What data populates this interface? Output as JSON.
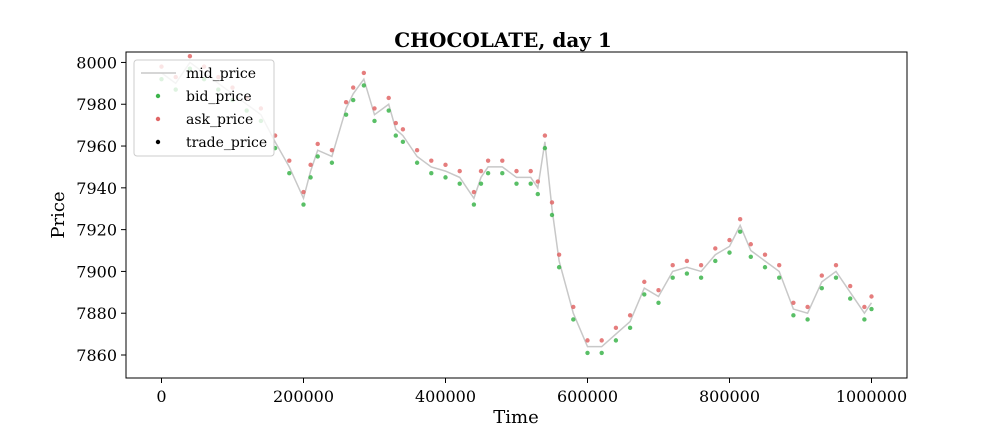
{
  "chart_data": {
    "type": "line",
    "title": "CHOCOLATE, day 1",
    "xlabel": "Time",
    "ylabel": "Price",
    "xlim": [
      -50000,
      1050000
    ],
    "ylim": [
      7849,
      8005
    ],
    "x_ticks": [
      0,
      200000,
      400000,
      600000,
      800000,
      1000000
    ],
    "x_tick_labels": [
      "0",
      "200000",
      "400000",
      "600000",
      "800000",
      "1000000"
    ],
    "y_ticks": [
      7860,
      7880,
      7900,
      7920,
      7940,
      7960,
      7980,
      8000
    ],
    "y_tick_labels": [
      "7860",
      "7880",
      "7900",
      "7920",
      "7940",
      "7960",
      "7980",
      "8000"
    ],
    "grid": false,
    "legend_position": "top-left",
    "legend": [
      {
        "name": "mid_price",
        "marker": "line",
        "color": "#c8c8c8"
      },
      {
        "name": "bid_price",
        "marker": "dot",
        "color": "#3cb44b"
      },
      {
        "name": "ask_price",
        "marker": "dot",
        "color": "#e06666"
      },
      {
        "name": "trade_price",
        "marker": "dot",
        "color": "#000000"
      }
    ],
    "series": [
      {
        "name": "mid_price",
        "color": "#c8c8c8",
        "x": [
          0,
          20000,
          40000,
          60000,
          80000,
          100000,
          120000,
          140000,
          160000,
          180000,
          200000,
          210000,
          220000,
          240000,
          260000,
          270000,
          285000,
          300000,
          320000,
          330000,
          340000,
          360000,
          380000,
          400000,
          420000,
          440000,
          450000,
          460000,
          480000,
          500000,
          520000,
          530000,
          540000,
          550000,
          560000,
          580000,
          600000,
          620000,
          640000,
          660000,
          680000,
          700000,
          720000,
          740000,
          760000,
          780000,
          800000,
          815000,
          830000,
          850000,
          870000,
          890000,
          910000,
          930000,
          950000,
          970000,
          990000,
          1000000
        ],
        "values": [
          7995,
          7990,
          8000,
          7995,
          7990,
          7985,
          7980,
          7975,
          7962,
          7950,
          7935,
          7948,
          7958,
          7955,
          7978,
          7985,
          7992,
          7975,
          7980,
          7968,
          7965,
          7955,
          7950,
          7948,
          7945,
          7935,
          7945,
          7950,
          7950,
          7945,
          7945,
          7940,
          7962,
          7930,
          7905,
          7880,
          7864,
          7864,
          7870,
          7876,
          7892,
          7888,
          7900,
          7902,
          7900,
          7908,
          7912,
          7922,
          7910,
          7905,
          7900,
          7882,
          7880,
          7895,
          7900,
          7890,
          7880,
          7885
        ]
      },
      {
        "name": "bid_price",
        "color": "#3cb44b",
        "x": [
          0,
          20000,
          40000,
          60000,
          80000,
          100000,
          120000,
          140000,
          160000,
          180000,
          200000,
          210000,
          220000,
          240000,
          260000,
          270000,
          285000,
          300000,
          320000,
          330000,
          340000,
          360000,
          380000,
          400000,
          420000,
          440000,
          450000,
          460000,
          480000,
          500000,
          520000,
          530000,
          540000,
          550000,
          560000,
          580000,
          600000,
          620000,
          640000,
          660000,
          680000,
          700000,
          720000,
          740000,
          760000,
          780000,
          800000,
          815000,
          830000,
          850000,
          870000,
          890000,
          910000,
          930000,
          950000,
          970000,
          990000,
          1000000
        ],
        "values": [
          7992,
          7987,
          7997,
          7992,
          7987,
          7982,
          7977,
          7972,
          7959,
          7947,
          7932,
          7945,
          7955,
          7952,
          7975,
          7982,
          7989,
          7972,
          7977,
          7965,
          7962,
          7952,
          7947,
          7945,
          7942,
          7932,
          7942,
          7947,
          7947,
          7942,
          7942,
          7937,
          7959,
          7927,
          7902,
          7877,
          7861,
          7861,
          7867,
          7873,
          7889,
          7885,
          7897,
          7899,
          7897,
          7905,
          7909,
          7919,
          7907,
          7902,
          7897,
          7879,
          7877,
          7892,
          7897,
          7887,
          7877,
          7882
        ]
      },
      {
        "name": "ask_price",
        "color": "#e06666",
        "x": [
          0,
          20000,
          40000,
          60000,
          80000,
          100000,
          120000,
          140000,
          160000,
          180000,
          200000,
          210000,
          220000,
          240000,
          260000,
          270000,
          285000,
          300000,
          320000,
          330000,
          340000,
          360000,
          380000,
          400000,
          420000,
          440000,
          450000,
          460000,
          480000,
          500000,
          520000,
          530000,
          540000,
          550000,
          560000,
          580000,
          600000,
          620000,
          640000,
          660000,
          680000,
          700000,
          720000,
          740000,
          760000,
          780000,
          800000,
          815000,
          830000,
          850000,
          870000,
          890000,
          910000,
          930000,
          950000,
          970000,
          990000,
          1000000
        ],
        "values": [
          7998,
          7993,
          8003,
          7998,
          7993,
          7988,
          7983,
          7978,
          7965,
          7953,
          7938,
          7951,
          7961,
          7958,
          7981,
          7988,
          7995,
          7978,
          7983,
          7971,
          7968,
          7958,
          7953,
          7951,
          7948,
          7938,
          7948,
          7953,
          7953,
          7948,
          7948,
          7943,
          7965,
          7933,
          7908,
          7883,
          7867,
          7867,
          7873,
          7879,
          7895,
          7891,
          7903,
          7905,
          7903,
          7911,
          7915,
          7925,
          7913,
          7908,
          7903,
          7885,
          7883,
          7898,
          7903,
          7893,
          7883,
          7888
        ]
      }
    ]
  }
}
